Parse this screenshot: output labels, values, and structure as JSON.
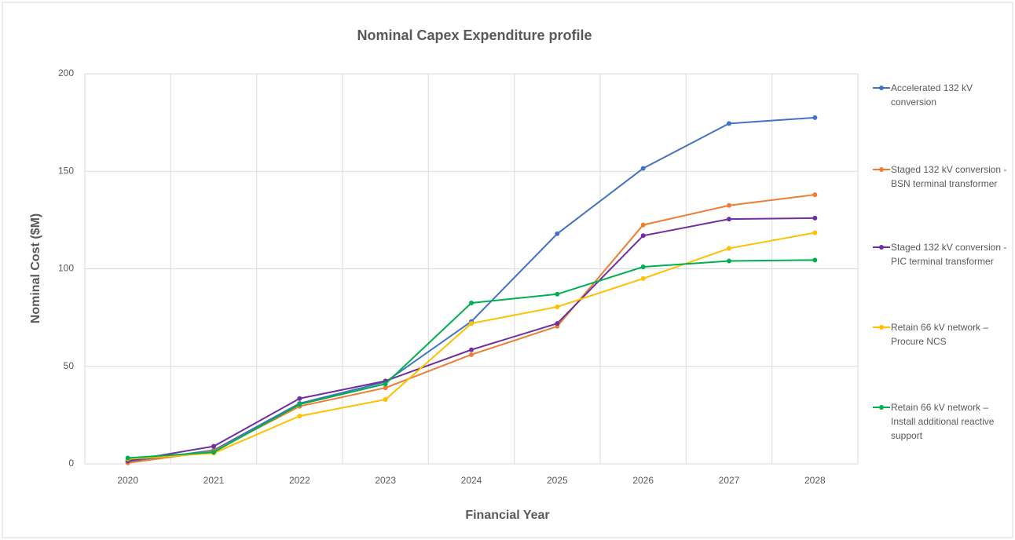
{
  "chart_data": {
    "type": "line",
    "title": "Nominal Capex Expenditure profile",
    "x_label": "Financial Year",
    "y_label": "Nominal Cost ($M)",
    "categories": [
      "2020",
      "2021",
      "2022",
      "2023",
      "2024",
      "2025",
      "2026",
      "2027",
      "2028"
    ],
    "ylim": [
      0,
      200
    ],
    "yticks": [
      0,
      50,
      100,
      150,
      200
    ],
    "grid": true,
    "legend": "right",
    "series": [
      {
        "name": "Accelerated 132 kV conversion",
        "color": "#4472c4",
        "values": [
          1,
          7,
          31,
          42,
          73,
          118,
          151.5,
          174.5,
          177.5
        ]
      },
      {
        "name": "Staged 132 kV conversion - BSN terminal transformer",
        "color": "#ed7d31",
        "values": [
          0.5,
          6.5,
          29.5,
          39,
          56,
          70.5,
          122.5,
          132.5,
          138
        ]
      },
      {
        "name": "Staged 132 kV conversion - PIC terminal transformer",
        "color": "#7030a0",
        "values": [
          1.5,
          9,
          33.5,
          42.5,
          58.5,
          72,
          117,
          125.5,
          126
        ]
      },
      {
        "name": "Retain 66 kV network – Procure NCS",
        "color": "#ffc000",
        "values": [
          2.5,
          5.5,
          24.5,
          33,
          72,
          80.5,
          95,
          110.5,
          118.5
        ]
      },
      {
        "name": "Retain 66 kV network – Install additional reactive support",
        "color": "#00b050",
        "values": [
          3,
          6,
          30.5,
          41,
          82.5,
          87,
          101,
          104,
          104.5
        ]
      }
    ]
  }
}
